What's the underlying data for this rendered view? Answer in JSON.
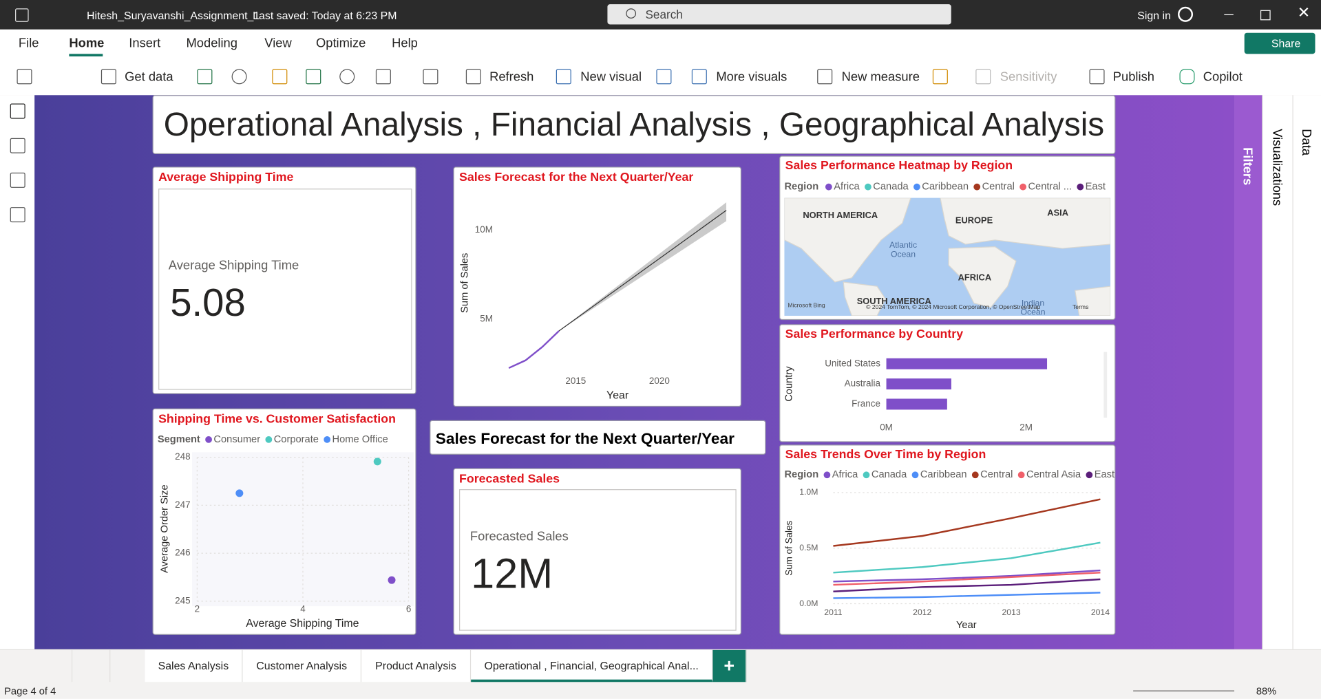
{
  "app": {
    "file_name": "Hitesh_Suryavanshi_Assignment_1",
    "saved": "Last saved: Today at 6:23 PM",
    "search": "Search",
    "sign_in": "Sign in"
  },
  "menu": [
    "File",
    "Home",
    "Insert",
    "Modeling",
    "View",
    "Optimize",
    "Help"
  ],
  "share": "Share",
  "ribbon": [
    "Get data",
    "Refresh",
    "New visual",
    "More visuals",
    "New measure",
    "Sensitivity",
    "Publish",
    "Copilot"
  ],
  "panes": [
    "Filters",
    "Visualizations",
    "Data"
  ],
  "report_title": "Operational Analysis , Financial Analysis , Geographical Analysis",
  "cards": [
    {
      "header": "Average Shipping Time",
      "label": "Average Shipping Time",
      "value": "5.08"
    },
    {
      "header": "Forecasted Sales",
      "label": "Forecasted Sales",
      "value": "12M"
    }
  ],
  "textbox": "Sales Forecast for the Next Quarter/Year",
  "map": {
    "title": "Sales Performance Heatmap by Region",
    "legend_title": "Region",
    "legend": [
      {
        "name": "Africa",
        "color": "#7f4fc9"
      },
      {
        "name": "Canada",
        "color": "#4ec9c0"
      },
      {
        "name": "Caribbean",
        "color": "#4e8ef7"
      },
      {
        "name": "Central",
        "color": "#a5381f"
      },
      {
        "name": "Central ...",
        "color": "#f0606a"
      },
      {
        "name": "East",
        "color": "#5b1e7a"
      }
    ],
    "labels": [
      "NORTH AMERICA",
      "EUROPE",
      "ASIA",
      "Atlantic Ocean",
      "AFRICA",
      "SOUTH AMERICA",
      "Indian Ocean"
    ],
    "attribution": "© 2024 TomTom, © 2024 Microsoft Corporation, © OpenStreetMap",
    "terms": "Terms",
    "provider": "Microsoft Bing"
  },
  "chart_data": [
    {
      "type": "line",
      "title": "Sales Forecast for the Next Quarter/Year",
      "x_label": "Year",
      "y_label": "Sum of Sales",
      "xlim": [
        2010.3,
        2024.4
      ],
      "ylim": [
        1980000,
        11800000
      ],
      "xticks": [
        2015,
        2020
      ],
      "yticks": [
        {
          "value": 5000000,
          "label": "5M"
        },
        {
          "value": 10000000,
          "label": "10M"
        }
      ],
      "series": [
        {
          "color": "#7f4fc9",
          "x": [
            2011,
            2012,
            2013,
            2014
          ],
          "values": [
            2260000,
            2690000,
            3440000,
            4340000
          ]
        },
        {
          "color": "#333333",
          "x": [
            2014,
            2024
          ],
          "values": [
            4340000,
            11100000
          ],
          "lower": [
            4340000,
            10500000
          ],
          "upper": [
            4340000,
            11550000
          ]
        }
      ]
    },
    {
      "type": "scatter",
      "title": "Shipping Time vs. Customer Satisfaction",
      "legend_title": "Segment",
      "x_label": "Average Shipping Time",
      "y_label": "Average Order Size",
      "xlim": [
        2,
        6
      ],
      "ylim": [
        245,
        248
      ],
      "xticks": [
        2,
        4,
        6
      ],
      "yticks": [
        245,
        246,
        247,
        248
      ],
      "grid": true,
      "series": [
        {
          "name": "Consumer",
          "color": "#7f4fc9",
          "x": [
            5.68
          ],
          "values": [
            245.44
          ]
        },
        {
          "name": "Corporate",
          "color": "#4ec9c0",
          "x": [
            5.41
          ],
          "values": [
            247.91
          ]
        },
        {
          "name": "Home Office",
          "color": "#4e8ef7",
          "x": [
            2.8
          ],
          "values": [
            247.25
          ]
        }
      ]
    },
    {
      "type": "bar",
      "orientation": "horizontal",
      "title": "Sales Performance by Country",
      "y_label": "Country",
      "categories": [
        "United States",
        "Australia",
        "France"
      ],
      "values": [
        2300000,
        930000,
        870000
      ],
      "color": "#7f4fc9",
      "xlim": [
        0,
        3050000
      ],
      "xticks": [
        {
          "value": 0,
          "label": "0M"
        },
        {
          "value": 2000000,
          "label": "2M"
        }
      ]
    },
    {
      "type": "line",
      "title": "Sales Trends Over Time by Region",
      "legend_title": "Region",
      "x_label": "Year",
      "y_label": "Sum of Sales",
      "xlim": [
        2011,
        2014
      ],
      "ylim": [
        0,
        1000000
      ],
      "xticks": [
        2011,
        2012,
        2013,
        2014
      ],
      "yticks": [
        {
          "value": 0,
          "label": "0.0M"
        },
        {
          "value": 500000,
          "label": "0.5M"
        },
        {
          "value": 1000000,
          "label": "1.0M"
        }
      ],
      "grid": true,
      "series": [
        {
          "name": "Africa",
          "color": "#7f4fc9",
          "x": [
            2011,
            2012,
            2013,
            2014
          ],
          "values": [
            200000,
            220000,
            250000,
            300000
          ]
        },
        {
          "name": "Canada",
          "color": "#4ec9c0",
          "x": [
            2011,
            2012,
            2013,
            2014
          ],
          "values": [
            280000,
            330000,
            410000,
            550000
          ]
        },
        {
          "name": "Caribbean",
          "color": "#4e8ef7",
          "x": [
            2011,
            2012,
            2013,
            2014
          ],
          "values": [
            50000,
            60000,
            80000,
            100000
          ]
        },
        {
          "name": "Central",
          "color": "#a5381f",
          "x": [
            2011,
            2012,
            2013,
            2014
          ],
          "values": [
            520000,
            610000,
            770000,
            940000
          ]
        },
        {
          "name": "Central Asia",
          "color": "#f0606a",
          "x": [
            2011,
            2012,
            2013,
            2014
          ],
          "values": [
            170000,
            200000,
            240000,
            280000
          ]
        },
        {
          "name": "East",
          "color": "#5b1e7a",
          "x": [
            2011,
            2012,
            2013,
            2014
          ],
          "values": [
            110000,
            150000,
            170000,
            220000
          ]
        }
      ]
    }
  ],
  "tabs": [
    "Sales Analysis",
    "Customer Analysis",
    "Product Analysis",
    "Operational , Financial, Geographical Anal..."
  ],
  "status": {
    "page": "Page 4 of 4",
    "zoom": "88%"
  }
}
